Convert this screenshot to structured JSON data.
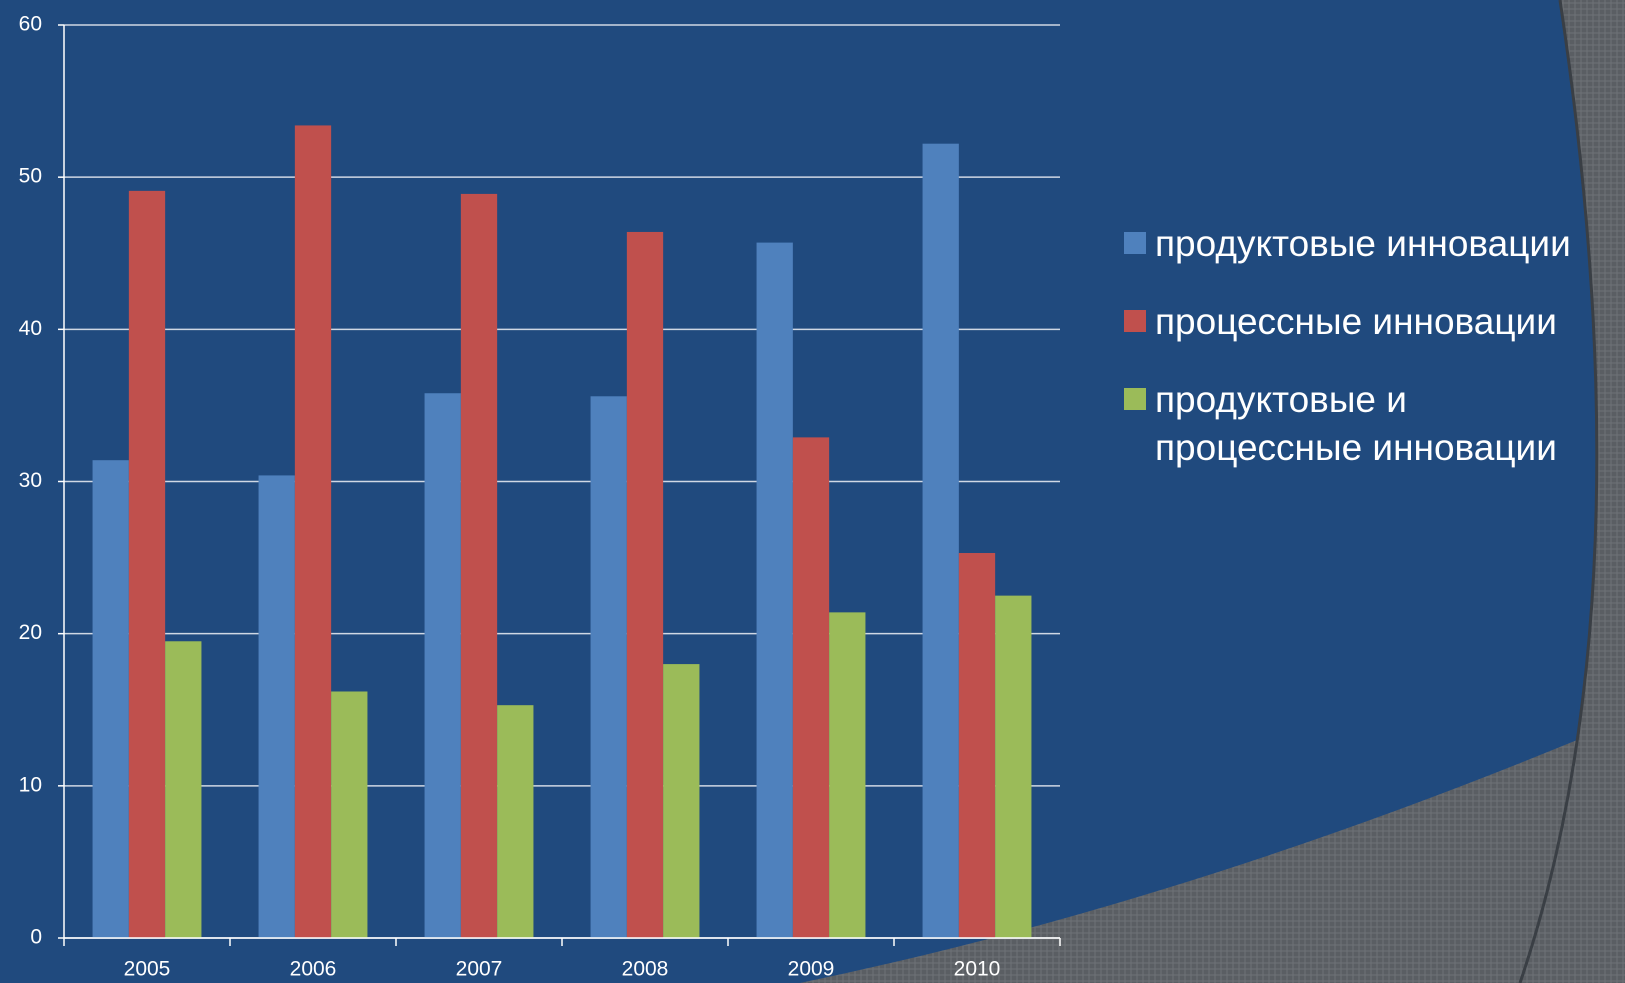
{
  "chart_data": {
    "type": "bar",
    "categories": [
      "2005",
      "2006",
      "2007",
      "2008",
      "2009",
      "2010"
    ],
    "series": [
      {
        "name": "продуктовые инновации",
        "color": "#4f81bd",
        "values": [
          31.4,
          30.4,
          35.8,
          35.6,
          45.7,
          52.2
        ]
      },
      {
        "name": "процессные инновации",
        "color": "#c0504d",
        "values": [
          49.1,
          53.4,
          48.9,
          46.4,
          32.9,
          25.3
        ]
      },
      {
        "name": "продуктовые и процессные инновации",
        "color": "#9bbb59",
        "values": [
          19.5,
          16.2,
          15.3,
          18.0,
          21.4,
          22.5
        ]
      }
    ],
    "ylim": [
      0,
      60
    ],
    "yticks": [
      0,
      10,
      20,
      30,
      40,
      50,
      60
    ],
    "grid": true,
    "legend": "right"
  }
}
